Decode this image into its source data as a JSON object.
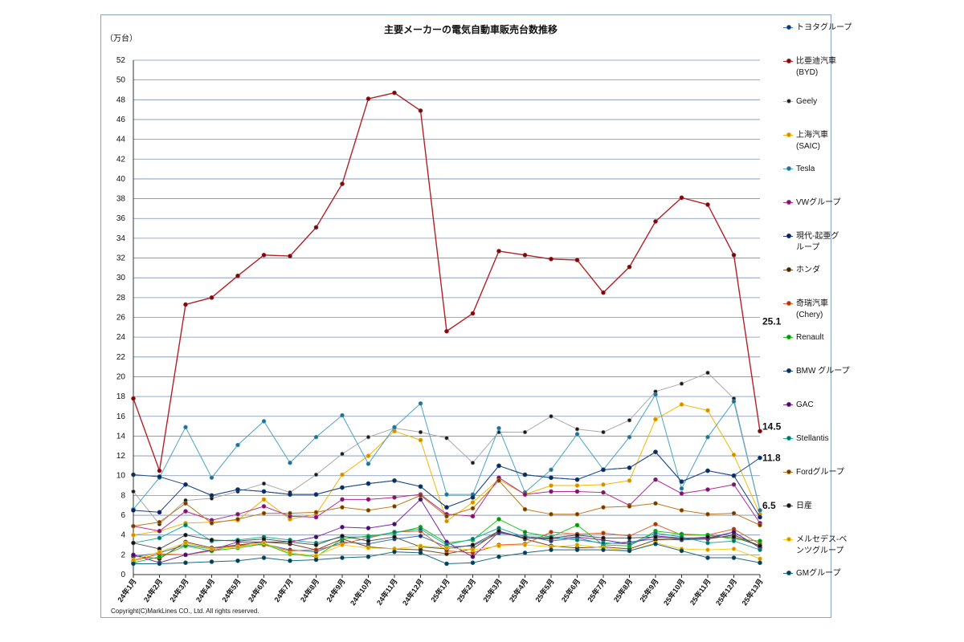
{
  "chart_data": {
    "type": "line",
    "title": "主要メーカーの電気自動車販売台数推移",
    "ylabel": "（万台）",
    "xlabel": "",
    "ylim": [
      0,
      52
    ],
    "yticks": [
      0,
      2,
      4,
      6,
      8,
      10,
      12,
      14,
      16,
      18,
      20,
      22,
      24,
      26,
      28,
      30,
      32,
      34,
      36,
      38,
      40,
      42,
      44,
      46,
      48,
      50,
      52
    ],
    "grid": true,
    "legend_position": "right",
    "categories": [
      "24年1月",
      "24年2月",
      "24年3月",
      "24年4月",
      "24年5月",
      "24年6月",
      "24年7月",
      "24年8月",
      "24年9月",
      "24年10月",
      "24年11月",
      "24年12月",
      "25年1月",
      "25年2月",
      "25年3月",
      "25年4月",
      "25年5月",
      "25年6月",
      "25年7月",
      "25年8月",
      "25年9月",
      "25年10月",
      "25年11月",
      "25年12月",
      "25年13月"
    ],
    "series": [
      {
        "name": "トヨタグループ",
        "color": "#3b6fb6",
        "dot": "#1a2f5a",
        "values": [
          1.8,
          2.2,
          3.0,
          2.6,
          2.9,
          3.1,
          2.5,
          2.3,
          3.3,
          3.1,
          3.6,
          3.9,
          2.8,
          2.9,
          4.2,
          3.9,
          3.4,
          3.7,
          3.1,
          3.3,
          3.6,
          3.5,
          3.6,
          4.3,
          2.7
        ]
      },
      {
        "name": "比亜迪汽車\n(BYD)",
        "color": "#b32025",
        "dot": "#6a0e12",
        "values": [
          17.8,
          10.5,
          27.3,
          28.0,
          30.2,
          32.3,
          32.2,
          35.1,
          39.5,
          48.1,
          48.7,
          46.9,
          24.6,
          26.4,
          32.7,
          32.3,
          31.9,
          31.8,
          28.5,
          31.1,
          35.7,
          38.1,
          37.4,
          32.3,
          14.5
        ]
      },
      {
        "name": "Geely",
        "color": "#a9a9a9",
        "dot": "#1a1a1a",
        "values": [
          8.4,
          5.1,
          7.5,
          7.7,
          8.4,
          9.2,
          8.3,
          10.1,
          12.2,
          13.9,
          14.8,
          14.4,
          13.8,
          11.3,
          14.4,
          14.4,
          16.0,
          14.7,
          14.4,
          15.6,
          18.5,
          19.3,
          20.4,
          17.8,
          6.5
        ]
      },
      {
        "name": "上海汽車\n(SAIC)",
        "color": "#f2b705",
        "dot": "#d48a00",
        "values": [
          4.0,
          4.4,
          5.2,
          5.3,
          5.5,
          7.6,
          5.6,
          6.1,
          10.1,
          12.0,
          14.5,
          13.6,
          5.4,
          7.3,
          9.6,
          8.1,
          9.0,
          9.0,
          9.1,
          9.5,
          15.7,
          17.2,
          16.6,
          12.1,
          6.1
        ]
      },
      {
        "name": "Tesla",
        "color": "#4aa3c8",
        "dot": "#2b6a8a",
        "values": [
          6.6,
          9.8,
          14.9,
          9.8,
          13.1,
          15.5,
          11.3,
          13.9,
          16.1,
          11.2,
          14.9,
          17.3,
          8.1,
          8.1,
          14.8,
          8.3,
          10.6,
          14.2,
          10.6,
          13.9,
          18.2,
          8.7,
          13.9,
          17.5,
          6.5
        ]
      },
      {
        "name": "VWグループ",
        "color": "#b32d9a",
        "dot": "#6a1d5c",
        "values": [
          4.9,
          4.4,
          6.4,
          5.5,
          6.1,
          6.9,
          5.9,
          5.8,
          7.6,
          7.6,
          7.8,
          8.1,
          6.1,
          5.9,
          9.8,
          8.1,
          8.4,
          8.4,
          8.3,
          7.0,
          9.6,
          8.2,
          8.6,
          9.1,
          5.2
        ]
      },
      {
        "name": "現代-起亜グ\nループ",
        "color": "#1f3a8a",
        "dot": "#0f1f4f",
        "values": [
          6.5,
          6.3,
          9.1,
          8.0,
          8.6,
          8.4,
          8.1,
          8.1,
          8.8,
          9.2,
          9.5,
          8.9,
          6.8,
          7.8,
          11.0,
          10.1,
          9.8,
          9.6,
          10.6,
          10.8,
          12.4,
          9.4,
          10.5,
          10.0,
          5.8
        ]
      },
      {
        "name": "ホンダ",
        "color": "#7a4a1a",
        "dot": "#3a2208",
        "values": [
          1.9,
          1.6,
          3.3,
          2.7,
          3.0,
          3.3,
          3.1,
          2.5,
          3.6,
          2.8,
          2.6,
          2.5,
          2.1,
          2.6,
          4.4,
          3.6,
          2.9,
          2.7,
          2.8,
          2.6,
          3.5,
          3.6,
          3.6,
          4.0,
          2.9
        ]
      },
      {
        "name": "奇瑞汽車\n(Chery)",
        "color": "#e2622a",
        "dot": "#9a3a12",
        "values": [
          1.4,
          2.1,
          2.0,
          2.4,
          3.0,
          3.0,
          2.4,
          2.5,
          3.1,
          3.7,
          4.3,
          4.4,
          2.4,
          2.2,
          3.0,
          3.1,
          4.3,
          4.1,
          4.2,
          3.9,
          5.1,
          4.0,
          4.0,
          4.6,
          3.1
        ]
      },
      {
        "name": "Renault",
        "color": "#22c422",
        "dot": "#108a10",
        "values": [
          1.2,
          1.8,
          2.9,
          2.4,
          2.7,
          3.1,
          2.1,
          1.8,
          3.6,
          3.9,
          4.2,
          4.8,
          3.2,
          3.5,
          5.6,
          4.3,
          3.8,
          5.0,
          3.0,
          2.9,
          4.4,
          4.1,
          4.0,
          3.6,
          3.4
        ]
      },
      {
        "name": "BMW グループ",
        "color": "#1f4e8a",
        "dot": "#0f2a4f",
        "values": [
          10.1,
          9.9,
          9.1,
          8.0,
          8.6,
          8.4,
          8.1,
          8.1,
          8.8,
          9.2,
          9.5,
          8.9,
          6.8,
          7.8,
          11.0,
          10.1,
          9.8,
          9.6,
          10.6,
          10.8,
          12.4,
          9.4,
          10.5,
          10.0,
          11.8
        ]
      },
      {
        "name": "GAC",
        "color": "#7a2aa8",
        "dot": "#3a1258",
        "values": [
          2.0,
          1.2,
          2.0,
          2.5,
          3.3,
          3.3,
          3.3,
          3.8,
          4.8,
          4.7,
          5.1,
          7.6,
          3.3,
          1.8,
          4.3,
          3.7,
          3.6,
          3.8,
          3.5,
          3.1,
          3.9,
          3.7,
          3.7,
          4.3,
          2.7
        ]
      },
      {
        "name": "Stellantis",
        "color": "#1fb0a0",
        "dot": "#0e6a60",
        "values": [
          3.2,
          3.7,
          5.0,
          3.4,
          3.5,
          3.8,
          3.5,
          3.2,
          3.8,
          3.8,
          4.3,
          4.6,
          3.0,
          3.6,
          4.7,
          3.8,
          3.8,
          3.5,
          3.2,
          3.1,
          4.2,
          3.8,
          3.2,
          3.4,
          2.5
        ]
      },
      {
        "name": "Fordグループ",
        "color": "#c07818",
        "dot": "#6a3a08",
        "values": [
          4.9,
          5.3,
          7.2,
          5.2,
          5.6,
          6.2,
          6.2,
          6.3,
          6.8,
          6.5,
          6.9,
          8.0,
          5.9,
          6.7,
          9.5,
          6.6,
          6.1,
          6.1,
          6.8,
          6.9,
          7.2,
          6.5,
          6.1,
          6.2,
          5.0
        ]
      },
      {
        "name": "日産",
        "color": "#555555",
        "dot": "#111111",
        "values": [
          3.2,
          2.6,
          4.0,
          3.5,
          3.4,
          3.6,
          3.3,
          3.0,
          3.9,
          3.4,
          3.8,
          2.8,
          2.6,
          3.0,
          4.4,
          3.7,
          3.7,
          4.0,
          3.7,
          3.7,
          3.8,
          3.6,
          3.8,
          3.8,
          2.9
        ]
      },
      {
        "name": "メルセデス-ベ\nンツグループ",
        "color": "#f5d018",
        "dot": "#d49000",
        "values": [
          1.5,
          2.3,
          3.2,
          2.6,
          2.8,
          3.2,
          2.2,
          1.9,
          3.0,
          2.7,
          2.6,
          2.9,
          2.7,
          2.5,
          2.9,
          3.0,
          2.8,
          3.0,
          2.7,
          2.4,
          3.2,
          2.6,
          2.5,
          2.6,
          1.6
        ]
      },
      {
        "name": "GMグループ",
        "color": "#1a6a8a",
        "dot": "#0a3a4f",
        "values": [
          1.1,
          1.1,
          1.2,
          1.3,
          1.4,
          1.7,
          1.4,
          1.5,
          1.7,
          1.8,
          2.3,
          2.2,
          1.1,
          1.2,
          1.8,
          2.2,
          2.5,
          2.5,
          2.5,
          2.4,
          3.1,
          2.4,
          1.7,
          1.7,
          1.2
        ]
      }
    ],
    "annotations": [
      "25.1",
      "14.5",
      "11.8",
      "6.5"
    ]
  },
  "copyright": "Copyright(C)MarkLines CO., Ltd. All rights reserved."
}
